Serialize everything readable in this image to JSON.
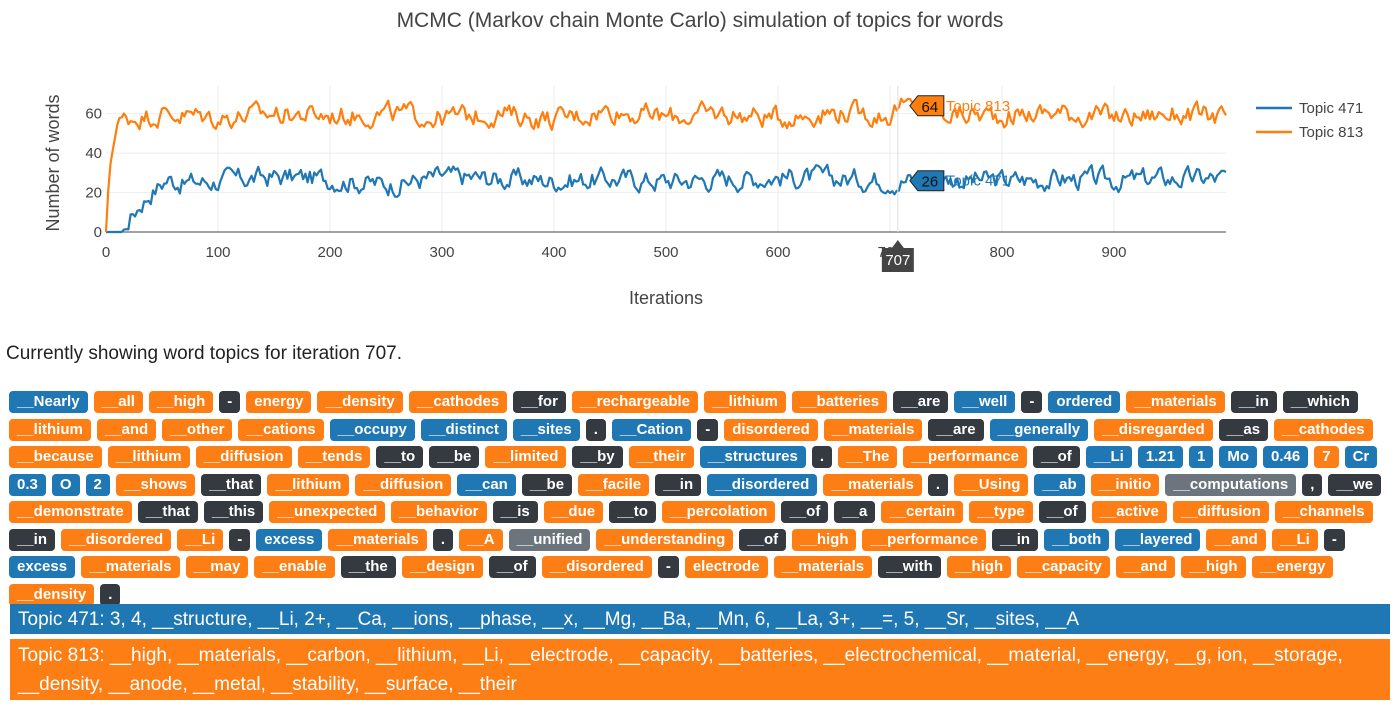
{
  "chart_data": {
    "type": "line",
    "title": "MCMC (Markov chain Monte Carlo) simulation of topics for words",
    "xlabel": "Iterations",
    "ylabel": "Number of words",
    "xlim": [
      0,
      1000
    ],
    "ylim": [
      0,
      72
    ],
    "x_ticks": [
      "0",
      "100",
      "200",
      "300",
      "400",
      "500",
      "600",
      "700",
      "800",
      "900"
    ],
    "y_ticks": [
      "0",
      "20",
      "40",
      "60"
    ],
    "grid": true,
    "legend_position": "top-right",
    "series": [
      {
        "name": "Topic 471",
        "color": "#1f77b4",
        "keypoints": [
          [
            0,
            0
          ],
          [
            15,
            0
          ],
          [
            20,
            6
          ],
          [
            30,
            14
          ],
          [
            40,
            20
          ],
          [
            55,
            27
          ],
          [
            70,
            25
          ],
          [
            100,
            26
          ],
          [
            150,
            28
          ],
          [
            200,
            27
          ],
          [
            250,
            24
          ],
          [
            300,
            28
          ],
          [
            350,
            27
          ],
          [
            400,
            26
          ],
          [
            450,
            27
          ],
          [
            500,
            26
          ],
          [
            550,
            27
          ],
          [
            600,
            28
          ],
          [
            650,
            27
          ],
          [
            700,
            27
          ],
          [
            707,
            26
          ],
          [
            750,
            27
          ],
          [
            800,
            26
          ],
          [
            850,
            27
          ],
          [
            900,
            26
          ],
          [
            950,
            27
          ],
          [
            1000,
            27
          ]
        ]
      },
      {
        "name": "Topic 813",
        "color": "#ff7f0e",
        "keypoints": [
          [
            0,
            0
          ],
          [
            3,
            30
          ],
          [
            6,
            45
          ],
          [
            10,
            55
          ],
          [
            20,
            58
          ],
          [
            50,
            60
          ],
          [
            100,
            58
          ],
          [
            150,
            60
          ],
          [
            200,
            59
          ],
          [
            250,
            60
          ],
          [
            300,
            58
          ],
          [
            350,
            60
          ],
          [
            400,
            57
          ],
          [
            450,
            62
          ],
          [
            500,
            58
          ],
          [
            550,
            60
          ],
          [
            600,
            58
          ],
          [
            650,
            61
          ],
          [
            700,
            59
          ],
          [
            707,
            64
          ],
          [
            750,
            60
          ],
          [
            800,
            59
          ],
          [
            850,
            61
          ],
          [
            900,
            58
          ],
          [
            950,
            60
          ],
          [
            1000,
            58
          ]
        ]
      }
    ],
    "hover": {
      "x_label": "707",
      "values": [
        {
          "series": "Topic 813",
          "value": "64"
        },
        {
          "series": "Topic 471",
          "value": "26"
        }
      ]
    }
  },
  "caption": "Currently showing word topics for iteration 707.",
  "words": [
    [
      "__Nearly",
      "b"
    ],
    [
      "__all",
      "o"
    ],
    [
      "__high",
      "o"
    ],
    [
      "-",
      "d"
    ],
    [
      "energy",
      "o"
    ],
    [
      "__density",
      "o"
    ],
    [
      "__cathodes",
      "o"
    ],
    [
      "__for",
      "d"
    ],
    [
      "__rechargeable",
      "o"
    ],
    [
      "__lithium",
      "o"
    ],
    [
      "__batteries",
      "o"
    ],
    [
      "__are",
      "d"
    ],
    [
      "__well",
      "b"
    ],
    [
      "-",
      "d"
    ],
    [
      "ordered",
      "b"
    ],
    [
      "__materials",
      "o"
    ],
    [
      "__in",
      "d"
    ],
    [
      "__which",
      "d"
    ],
    [
      "__lithium",
      "o"
    ],
    [
      "__and",
      "o"
    ],
    [
      "__other",
      "o"
    ],
    [
      "__cations",
      "o"
    ],
    [
      "__occupy",
      "b"
    ],
    [
      "__distinct",
      "b"
    ],
    [
      "__sites",
      "b"
    ],
    [
      ".",
      "d"
    ],
    [
      "__Cation",
      "b"
    ],
    [
      "-",
      "d"
    ],
    [
      "disordered",
      "o"
    ],
    [
      "__materials",
      "o"
    ],
    [
      "__are",
      "d"
    ],
    [
      "__generally",
      "b"
    ],
    [
      "__disregarded",
      "o"
    ],
    [
      "__as",
      "d"
    ],
    [
      "__cathodes",
      "o"
    ],
    [
      "__because",
      "o"
    ],
    [
      "__lithium",
      "o"
    ],
    [
      "__diffusion",
      "o"
    ],
    [
      "__tends",
      "o"
    ],
    [
      "__to",
      "d"
    ],
    [
      "__be",
      "d"
    ],
    [
      "__limited",
      "o"
    ],
    [
      "__by",
      "d"
    ],
    [
      "__their",
      "o"
    ],
    [
      "__structures",
      "b"
    ],
    [
      ".",
      "d"
    ],
    [
      "__The",
      "o"
    ],
    [
      "__performance",
      "o"
    ],
    [
      "__of",
      "d"
    ],
    [
      "__Li",
      "b"
    ],
    [
      "1.21",
      "b"
    ],
    [
      "1",
      "b"
    ],
    [
      "Mo",
      "b"
    ],
    [
      "0.46",
      "b"
    ],
    [
      "7",
      "o"
    ],
    [
      "Cr",
      "b"
    ],
    [
      "0.3",
      "b"
    ],
    [
      "O",
      "b"
    ],
    [
      "2",
      "b"
    ],
    [
      "__shows",
      "o"
    ],
    [
      "__that",
      "d"
    ],
    [
      "__lithium",
      "o"
    ],
    [
      "__diffusion",
      "o"
    ],
    [
      "__can",
      "b"
    ],
    [
      "__be",
      "d"
    ],
    [
      "__facile",
      "o"
    ],
    [
      "__in",
      "d"
    ],
    [
      "__disordered",
      "b"
    ],
    [
      "__materials",
      "o"
    ],
    [
      ".",
      "d"
    ],
    [
      "__Using",
      "o"
    ],
    [
      "__ab",
      "b"
    ],
    [
      "__initio",
      "o"
    ],
    [
      "__computations",
      "g"
    ],
    [
      ",",
      "d"
    ],
    [
      "__we",
      "d"
    ],
    [
      "__demonstrate",
      "o"
    ],
    [
      "__that",
      "d"
    ],
    [
      "__this",
      "d"
    ],
    [
      "__unexpected",
      "o"
    ],
    [
      "__behavior",
      "o"
    ],
    [
      "__is",
      "d"
    ],
    [
      "__due",
      "o"
    ],
    [
      "__to",
      "d"
    ],
    [
      "__percolation",
      "o"
    ],
    [
      "__of",
      "d"
    ],
    [
      "__a",
      "d"
    ],
    [
      "__certain",
      "o"
    ],
    [
      "__type",
      "o"
    ],
    [
      "__of",
      "d"
    ],
    [
      "__active",
      "o"
    ],
    [
      "__diffusion",
      "o"
    ],
    [
      "__channels",
      "o"
    ],
    [
      "__in",
      "d"
    ],
    [
      "__disordered",
      "o"
    ],
    [
      "__Li",
      "o"
    ],
    [
      "-",
      "d"
    ],
    [
      "excess",
      "b"
    ],
    [
      "__materials",
      "o"
    ],
    [
      ".",
      "d"
    ],
    [
      "__A",
      "o"
    ],
    [
      "__unified",
      "g"
    ],
    [
      "__understanding",
      "o"
    ],
    [
      "__of",
      "d"
    ],
    [
      "__high",
      "o"
    ],
    [
      "__performance",
      "o"
    ],
    [
      "__in",
      "d"
    ],
    [
      "__both",
      "b"
    ],
    [
      "__layered",
      "b"
    ],
    [
      "__and",
      "o"
    ],
    [
      "__Li",
      "o"
    ],
    [
      "-",
      "d"
    ],
    [
      "excess",
      "b"
    ],
    [
      "__materials",
      "o"
    ],
    [
      "__may",
      "o"
    ],
    [
      "__enable",
      "o"
    ],
    [
      "__the",
      "d"
    ],
    [
      "__design",
      "o"
    ],
    [
      "__of",
      "d"
    ],
    [
      "__disordered",
      "o"
    ],
    [
      "-",
      "d"
    ],
    [
      "electrode",
      "o"
    ],
    [
      "__materials",
      "o"
    ],
    [
      "__with",
      "d"
    ],
    [
      "__high",
      "o"
    ],
    [
      "__capacity",
      "o"
    ],
    [
      "__and",
      "o"
    ],
    [
      "__high",
      "o"
    ],
    [
      "__energy",
      "o"
    ],
    [
      "__density",
      "o"
    ],
    [
      ".",
      "d"
    ]
  ],
  "topics": {
    "t471": "Topic 471: 3, 4, __structure, __Li, 2+, __Ca, __ions, __phase, __x, __Mg, __Ba, __Mn, 6, __La, 3+, __=, 5, __Sr, __sites, __A",
    "t813": "Topic 813: __high, __materials, __carbon, __lithium, __Li, __electrode, __capacity, __batteries, __electrochemical, __material, __energy, __g, ion, __storage, __density, __anode, __metal, __stability, __surface, __their"
  }
}
